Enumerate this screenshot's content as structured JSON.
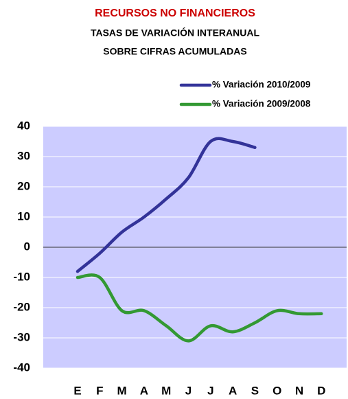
{
  "chart_data": {
    "type": "line",
    "title": "RECURSOS NO FINANCIEROS",
    "subtitle": [
      "TASAS DE VARIACIÓN INTERANUAL",
      "SOBRE CIFRAS ACUMULADAS"
    ],
    "categories": [
      "E",
      "F",
      "M",
      "A",
      "M",
      "J",
      "J",
      "A",
      "S",
      "O",
      "N",
      "D"
    ],
    "series": [
      {
        "name": "% Variación 2010/2009",
        "color": "#333399",
        "values": [
          -8,
          -2,
          5,
          10,
          16,
          23,
          35,
          35,
          33,
          null,
          null,
          null
        ]
      },
      {
        "name": "% Variación 2009/2008",
        "color": "#339933",
        "values": [
          -10,
          -10,
          -21,
          -21,
          -26,
          -31,
          -26,
          -28,
          -25,
          -21,
          -22,
          -22
        ]
      }
    ],
    "ylim": [
      -40,
      40
    ],
    "yticks": [
      -40,
      -30,
      -20,
      -10,
      0,
      10,
      20,
      30,
      40
    ],
    "grid": true,
    "plot_background": "#ccccff"
  }
}
